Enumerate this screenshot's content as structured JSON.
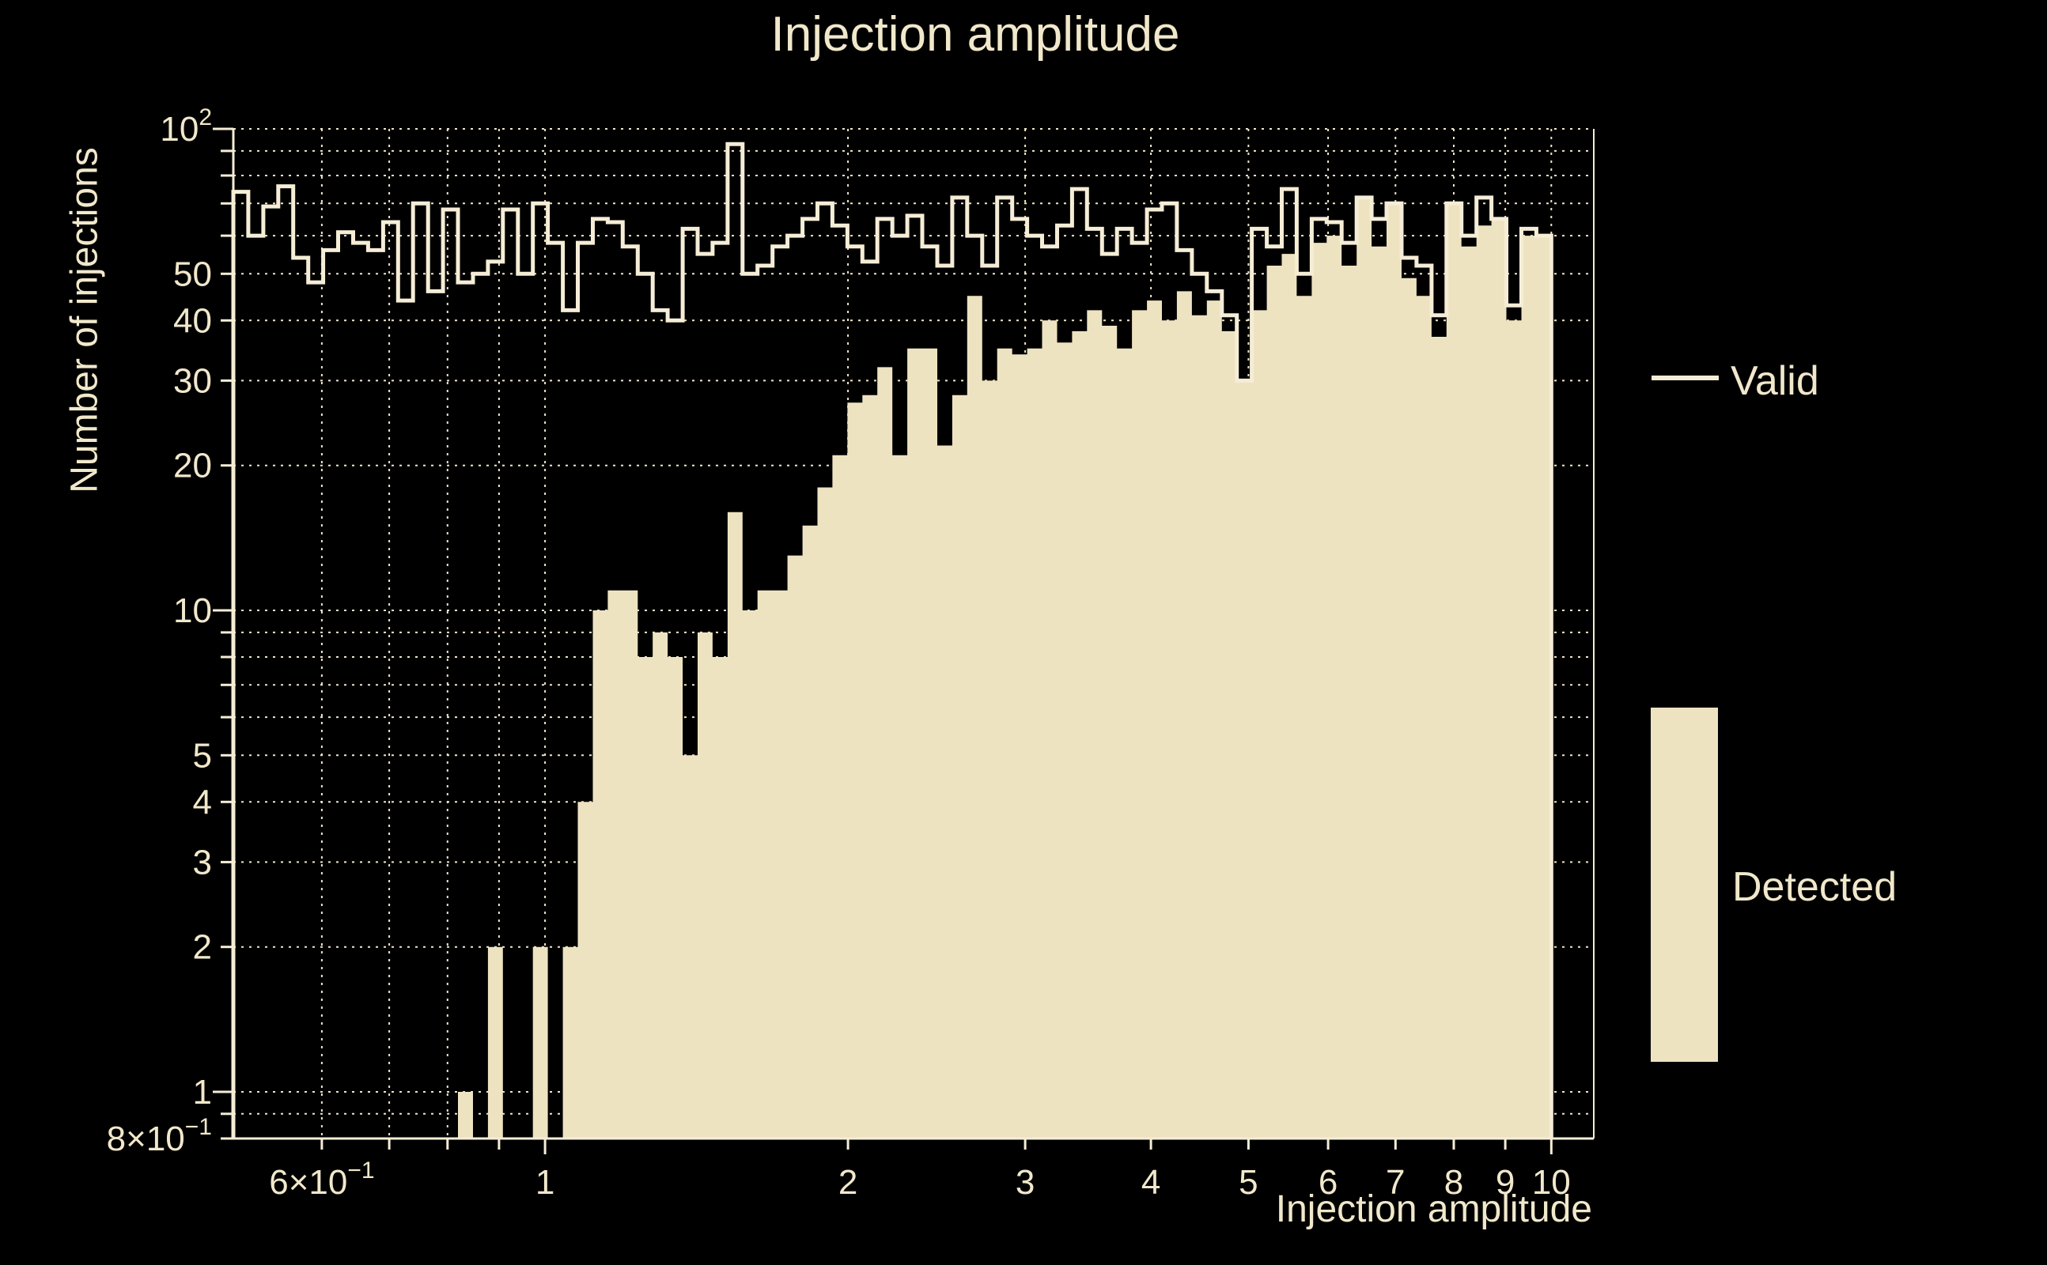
{
  "title": "Injection amplitude",
  "colors": {
    "background": "#000000",
    "fill": "#EDE3C1",
    "line": "#F5EDD6",
    "text": "#F1E8CB",
    "grid": "#EFE6C8"
  },
  "legend": [
    {
      "label": "Valid",
      "type": "line"
    },
    {
      "label": "Detected",
      "type": "fill"
    }
  ],
  "chart_data": {
    "type": "bar",
    "subtype": "log-log step histogram",
    "title": "Injection amplitude",
    "xlabel": "Injection amplitude",
    "ylabel": "Number of injections",
    "xlim": [
      0.49,
      11.02
    ],
    "ylim": [
      0.8,
      100
    ],
    "grid": "dotted",
    "legend_position": "right-outside",
    "bins": {
      "min": 0.49,
      "max": 10.0,
      "count": 88,
      "spacing": "log"
    },
    "x_ticks": [
      {
        "v": 0.6,
        "base": "6×10",
        "sup": "−1"
      },
      {
        "v": 1,
        "base": "1"
      },
      {
        "v": 2,
        "base": "2"
      },
      {
        "v": 3,
        "base": "3"
      },
      {
        "v": 4,
        "base": "4"
      },
      {
        "v": 5,
        "base": "5"
      },
      {
        "v": 6,
        "base": "6"
      },
      {
        "v": 7,
        "base": "7"
      },
      {
        "v": 8,
        "base": "8"
      },
      {
        "v": 9,
        "base": "9"
      },
      {
        "v": 10,
        "base": "10"
      }
    ],
    "y_ticks": [
      {
        "v": 100,
        "base": "10",
        "sup": "2"
      },
      {
        "v": 50,
        "base": "50"
      },
      {
        "v": 40,
        "base": "40"
      },
      {
        "v": 30,
        "base": "30"
      },
      {
        "v": 20,
        "base": "20"
      },
      {
        "v": 10,
        "base": "10"
      },
      {
        "v": 5,
        "base": "5"
      },
      {
        "v": 4,
        "base": "4"
      },
      {
        "v": 3,
        "base": "3"
      },
      {
        "v": 2,
        "base": "2"
      },
      {
        "v": 1,
        "base": "1"
      },
      {
        "v": 0.8,
        "base": "8×10",
        "sup": "−1"
      }
    ],
    "x_gridlines": [
      0.6,
      0.7,
      0.8,
      0.9,
      1,
      2,
      3,
      4,
      5,
      6,
      7,
      8,
      9,
      10
    ],
    "y_gridlines": [
      0.9,
      1,
      2,
      3,
      4,
      5,
      6,
      7,
      8,
      9,
      10,
      20,
      30,
      40,
      50,
      60,
      70,
      80,
      90,
      100
    ],
    "series": [
      {
        "name": "Valid",
        "style": "step-line",
        "values": [
          74,
          60,
          69,
          76,
          54,
          48,
          56,
          61,
          58,
          56,
          64,
          44,
          70,
          46,
          68,
          48,
          50,
          53,
          68,
          50,
          70,
          58,
          42,
          58,
          65,
          64,
          57,
          50,
          42,
          40,
          62,
          55,
          58,
          93,
          50,
          52,
          57,
          60,
          65,
          70,
          63,
          57,
          53,
          65,
          60,
          66,
          57,
          52,
          72,
          60,
          52,
          72,
          65,
          60,
          57,
          63,
          75,
          62,
          55,
          62,
          58,
          68,
          70,
          56,
          50,
          46,
          41,
          30,
          62,
          57,
          75,
          50,
          65,
          64,
          58,
          72,
          65,
          70,
          54,
          52,
          41,
          70,
          60,
          72,
          65,
          43,
          62,
          60
        ]
      },
      {
        "name": "Detected",
        "style": "filled",
        "values": [
          0,
          0,
          0,
          0,
          0,
          0,
          0,
          0,
          0,
          0,
          0,
          0,
          0,
          0,
          0,
          1,
          0,
          2,
          0,
          0,
          2,
          0,
          2,
          4,
          10,
          11,
          11,
          8,
          9,
          8,
          5,
          9,
          8,
          16,
          10,
          11,
          11,
          13,
          15,
          18,
          21,
          27,
          28,
          32,
          21,
          35,
          35,
          22,
          28,
          45,
          30,
          35,
          34,
          35,
          40,
          36,
          38,
          42,
          39,
          35,
          42,
          44,
          40,
          46,
          41,
          44,
          38,
          30,
          42,
          52,
          55,
          45,
          58,
          60,
          52,
          72,
          57,
          70,
          49,
          45,
          37,
          70,
          57,
          63,
          65,
          40,
          60,
          60
        ]
      }
    ]
  }
}
